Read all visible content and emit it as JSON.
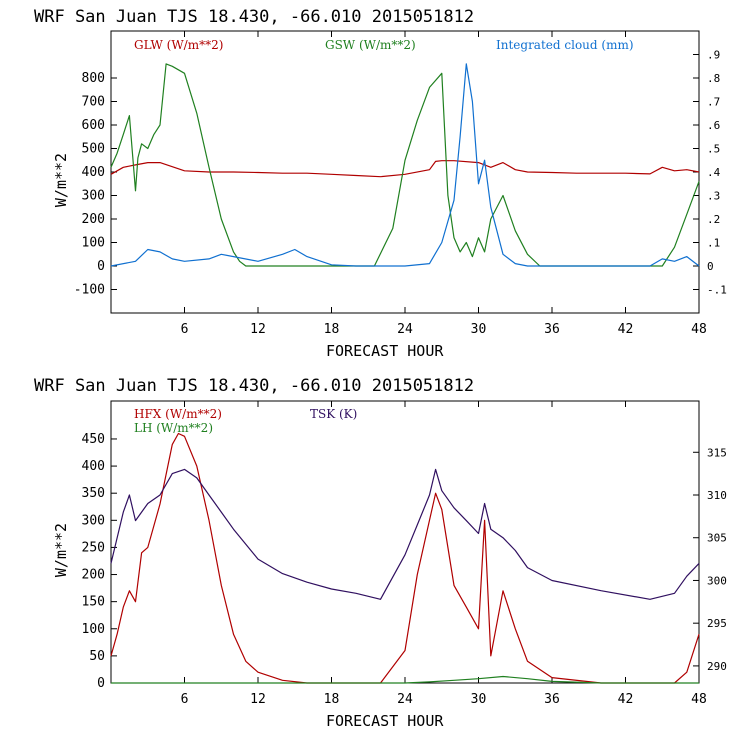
{
  "chart_data": [
    {
      "type": "line",
      "title": "WRF  San Juan TJS  18.430, -66.010  2015051812",
      "xlabel": "FORECAST HOUR",
      "ylabel": "W/m**2",
      "xlim": [
        0,
        48
      ],
      "ylim": [
        -200,
        1000
      ],
      "ylim_right": [
        -0.2,
        1.0
      ],
      "x_ticks": [
        6,
        12,
        18,
        24,
        30,
        36,
        42,
        48
      ],
      "y_ticks": [
        -100,
        0,
        100,
        200,
        300,
        400,
        500,
        600,
        700,
        800
      ],
      "y_tick_labels": [
        "-100",
        "0",
        "100",
        "200",
        "300",
        "400",
        "500",
        "600",
        "700",
        "800"
      ],
      "y2_ticks": [
        -0.1,
        0,
        0.1,
        0.2,
        0.3,
        0.4,
        0.5,
        0.6,
        0.7,
        0.8,
        0.9
      ],
      "y2_tick_labels": [
        "-.1",
        "0",
        ".1",
        ".2",
        ".3",
        ".4",
        ".5",
        ".6",
        ".7",
        ".8",
        ".9"
      ],
      "series": [
        {
          "name": "GLW (W/m**2)",
          "axis": "left",
          "color": "#b00000",
          "x": [
            0,
            1,
            2,
            3,
            4,
            6,
            8,
            10,
            12,
            14,
            16,
            18,
            20,
            22,
            24,
            26,
            26.5,
            27,
            28,
            30,
            31,
            32,
            33,
            34,
            36,
            38,
            40,
            42,
            44,
            45,
            46,
            47,
            48
          ],
          "y": [
            390,
            420,
            430,
            440,
            440,
            405,
            400,
            400,
            398,
            395,
            395,
            390,
            385,
            380,
            390,
            410,
            445,
            448,
            448,
            440,
            420,
            440,
            410,
            400,
            398,
            395,
            395,
            395,
            392,
            420,
            405,
            410,
            400
          ]
        },
        {
          "name": "GSW (W/m**2)",
          "axis": "left",
          "color": "#208020",
          "x": [
            0,
            0.5,
            1,
            1.5,
            2,
            2.2,
            2.5,
            3,
            3.5,
            4,
            4.5,
            5,
            6,
            7,
            8,
            9,
            10,
            10.5,
            11,
            14,
            18,
            21.5,
            23,
            24,
            25,
            26,
            27,
            27.5,
            28,
            28.5,
            29,
            29.5,
            30,
            30.5,
            31,
            32,
            33,
            34,
            35,
            44,
            45,
            46,
            47,
            48
          ],
          "y": [
            420,
            480,
            560,
            640,
            320,
            460,
            520,
            500,
            560,
            600,
            860,
            850,
            820,
            650,
            420,
            200,
            60,
            20,
            0,
            0,
            0,
            0,
            160,
            450,
            620,
            760,
            820,
            300,
            120,
            60,
            100,
            40,
            120,
            60,
            200,
            300,
            150,
            50,
            0,
            0,
            0,
            80,
            220,
            360
          ]
        },
        {
          "name": "Integrated cloud (mm)",
          "axis": "right",
          "color": "#1070d0",
          "x": [
            0,
            2,
            3,
            4,
            5,
            6,
            8,
            9,
            10,
            12,
            14,
            15,
            16,
            18,
            20,
            22,
            24,
            26,
            27,
            28,
            28.5,
            29,
            29.5,
            30,
            30.5,
            31,
            31.5,
            32,
            33,
            34,
            36,
            40,
            44,
            45,
            46,
            47,
            48
          ],
          "y": [
            0,
            0.02,
            0.07,
            0.06,
            0.03,
            0.02,
            0.03,
            0.05,
            0.04,
            0.02,
            0.05,
            0.07,
            0.04,
            0.005,
            0,
            0,
            0,
            0.01,
            0.1,
            0.28,
            0.55,
            0.86,
            0.7,
            0.35,
            0.45,
            0.25,
            0.15,
            0.05,
            0.01,
            0,
            0,
            0,
            0,
            0.03,
            0.02,
            0.04,
            0
          ]
        }
      ]
    },
    {
      "type": "line",
      "title": "WRF  San Juan TJS  18.430, -66.010  2015051812",
      "xlabel": "FORECAST HOUR",
      "ylabel": "W/m**2",
      "xlim": [
        0,
        48
      ],
      "ylim": [
        0,
        520
      ],
      "ylim_right": [
        288,
        321
      ],
      "x_ticks": [
        6,
        12,
        18,
        24,
        30,
        36,
        42,
        48
      ],
      "y_ticks": [
        0,
        50,
        100,
        150,
        200,
        250,
        300,
        350,
        400,
        450
      ],
      "y_tick_labels": [
        "0",
        "50",
        "100",
        "150",
        "200",
        "250",
        "300",
        "350",
        "400",
        "450"
      ],
      "y2_ticks": [
        290,
        295,
        300,
        305,
        310,
        315
      ],
      "y2_tick_labels": [
        "290",
        "295",
        "300",
        "305",
        "310",
        "315"
      ],
      "series": [
        {
          "name": "HFX (W/m**2)",
          "axis": "left",
          "color": "#b00000",
          "x": [
            0,
            0.5,
            1,
            1.5,
            2,
            2.5,
            3,
            4,
            5,
            5.5,
            6,
            7,
            8,
            9,
            10,
            11,
            12,
            14,
            16,
            18,
            20,
            22,
            24,
            25,
            26,
            26.5,
            27,
            28,
            29,
            30,
            30.5,
            31,
            32,
            33,
            34,
            36,
            40,
            44,
            46,
            47,
            48
          ],
          "y": [
            50,
            90,
            140,
            170,
            150,
            240,
            250,
            330,
            440,
            460,
            455,
            400,
            300,
            180,
            90,
            40,
            20,
            5,
            0,
            0,
            0,
            0,
            60,
            200,
            300,
            350,
            320,
            180,
            140,
            100,
            300,
            50,
            170,
            100,
            40,
            10,
            0,
            0,
            0,
            20,
            90
          ]
        },
        {
          "name": "LH (W/m**2)",
          "axis": "left",
          "color": "#208020",
          "x": [
            0,
            24,
            26,
            28,
            30,
            32,
            34,
            36,
            40,
            48
          ],
          "y": [
            0,
            0,
            2,
            5,
            8,
            12,
            8,
            3,
            0,
            0
          ]
        },
        {
          "name": "TSK (K)",
          "axis": "right",
          "color": "#301060",
          "x": [
            0,
            1,
            1.5,
            2,
            2.5,
            3,
            4,
            5,
            6,
            7,
            8,
            9,
            10,
            12,
            14,
            16,
            18,
            20,
            22,
            24,
            25,
            26,
            26.5,
            27,
            28,
            29,
            30,
            30.5,
            31,
            32,
            33,
            34,
            36,
            40,
            44,
            46,
            47,
            48
          ],
          "y": [
            302,
            308,
            310,
            307,
            308,
            309,
            310,
            312.5,
            313,
            312,
            310,
            308,
            306,
            302.5,
            300.8,
            299.8,
            299,
            298.5,
            297.8,
            303,
            306.5,
            310,
            313,
            310.5,
            308.5,
            307,
            305.5,
            309,
            306,
            305,
            303.5,
            301.5,
            300,
            298.8,
            297.8,
            298.5,
            300.5,
            302
          ]
        }
      ]
    }
  ],
  "colors": {
    "axes": "#000000",
    "background": "#ffffff"
  }
}
